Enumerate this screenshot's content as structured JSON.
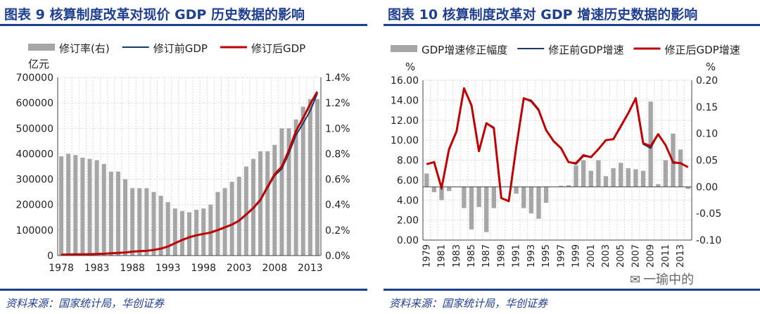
{
  "colors": {
    "title_blue": "#1f3f8f",
    "bar_gray": "#a6a6a6",
    "pre_line": "#1f3864",
    "post_line": "#c00000",
    "grid": "#d9d9d9"
  },
  "left": {
    "title": "图表 9  核算制度改革对现价 GDP 历史数据的影响",
    "source": "资料来源：国家统计局，华创证券"
  },
  "right": {
    "title": "图表 10  核算制度改革对 GDP 增速历史数据的影响",
    "source": "资料来源：国家统计局，华创证券",
    "watermark": "一瑜中的"
  },
  "chart_data": [
    {
      "type": "bar",
      "legend": [
        "修订率(右)",
        "修订前GDP",
        "修订后GDP"
      ],
      "y_left_unit": "亿元",
      "ylim_left": [
        0,
        700000
      ],
      "yticks_left": [
        "0",
        "100000",
        "200000",
        "300000",
        "400000",
        "500000",
        "600000",
        "700000"
      ],
      "ylim_right": [
        0,
        1.4
      ],
      "yticks_right": [
        "0.0%",
        "0.2%",
        "0.4%",
        "0.6%",
        "0.8%",
        "1.0%",
        "1.2%",
        "1.4%"
      ],
      "x": [
        1978,
        1979,
        1980,
        1981,
        1982,
        1983,
        1984,
        1985,
        1986,
        1987,
        1988,
        1989,
        1990,
        1991,
        1992,
        1993,
        1994,
        1995,
        1996,
        1997,
        1998,
        1999,
        2000,
        2001,
        2002,
        2003,
        2004,
        2005,
        2006,
        2007,
        2008,
        2009,
        2010,
        2011,
        2012,
        2013,
        2014
      ],
      "xticks": [
        "1978",
        "1983",
        "1988",
        "1993",
        "1998",
        "2003",
        "2008",
        "2013"
      ],
      "series": [
        {
          "name": "修订率(右)",
          "kind": "bar",
          "axis": "right",
          "values": [
            0.78,
            0.8,
            0.79,
            0.77,
            0.76,
            0.75,
            0.72,
            0.66,
            0.66,
            0.6,
            0.53,
            0.53,
            0.53,
            0.5,
            0.47,
            0.42,
            0.37,
            0.35,
            0.34,
            0.36,
            0.37,
            0.4,
            0.5,
            0.53,
            0.58,
            0.62,
            0.7,
            0.76,
            0.82,
            0.82,
            0.87,
            1.0,
            1.0,
            1.07,
            1.17,
            1.23,
            1.23
          ]
        },
        {
          "name": "修订前GDP",
          "kind": "line",
          "axis": "left",
          "values": [
            3650,
            4070,
            4550,
            4890,
            5320,
            5960,
            7210,
            9040,
            10280,
            12060,
            15040,
            16990,
            18670,
            21780,
            26920,
            35330,
            48200,
            60790,
            71180,
            78970,
            84400,
            89680,
            99210,
            109650,
            120330,
            135820,
            159880,
            184940,
            216310,
            265810,
            314050,
            340900,
            401510,
            473100,
            519470,
            568850,
            636460
          ]
        },
        {
          "name": "修订后GDP",
          "kind": "line",
          "axis": "left",
          "values": [
            3680,
            4100,
            4590,
            4940,
            5370,
            6020,
            7280,
            9100,
            10380,
            12170,
            15180,
            17180,
            18870,
            22010,
            27190,
            35670,
            48640,
            61340,
            71810,
            79710,
            85200,
            90560,
            100280,
            110860,
            121720,
            137420,
            161840,
            187320,
            219440,
            270230,
            319520,
            349080,
            413030,
            489300,
            540370,
            595240,
            643970
          ]
        }
      ]
    },
    {
      "type": "bar",
      "legend": [
        "GDP增速修正幅度",
        "修正前GDP增速",
        "修正后GDP增速"
      ],
      "y_left_unit": "%",
      "y_right_unit": "%",
      "ylim_left": [
        0,
        16
      ],
      "yticks_left": [
        "0.00",
        "2.00",
        "4.00",
        "6.00",
        "8.00",
        "10.00",
        "12.00",
        "14.00",
        "16.00"
      ],
      "ylim_right": [
        -0.1,
        0.2
      ],
      "yticks_right": [
        "-0.10",
        "-0.05",
        "0.00",
        "0.05",
        "0.10",
        "0.15",
        "0.20"
      ],
      "x": [
        1979,
        1980,
        1981,
        1982,
        1983,
        1984,
        1985,
        1986,
        1987,
        1988,
        1989,
        1990,
        1991,
        1992,
        1993,
        1994,
        1995,
        1996,
        1997,
        1998,
        1999,
        2000,
        2001,
        2002,
        2003,
        2004,
        2005,
        2006,
        2007,
        2008,
        2009,
        2010,
        2011,
        2012,
        2013,
        2014
      ],
      "xticks": [
        "1979",
        "1981",
        "1983",
        "1985",
        "1987",
        "1989",
        "1991",
        "1993",
        "1995",
        "1997",
        "1999",
        "2001",
        "2003",
        "2005",
        "2007",
        "2009",
        "2011",
        "2013"
      ],
      "series": [
        {
          "name": "GDP增速修正幅度",
          "kind": "bar",
          "axis": "right",
          "values": [
            0.025,
            -0.01,
            -0.025,
            -0.008,
            0.0,
            -0.04,
            -0.08,
            -0.038,
            -0.085,
            -0.04,
            0.0,
            0.0,
            -0.013,
            -0.04,
            -0.05,
            -0.06,
            -0.03,
            0.0,
            0.002,
            0.003,
            0.04,
            0.05,
            0.03,
            0.05,
            0.02,
            0.035,
            0.045,
            0.035,
            0.033,
            0.03,
            0.16,
            0.005,
            0.05,
            0.1,
            0.07,
            -0.004
          ]
        },
        {
          "name": "修正前GDP增速",
          "kind": "line",
          "axis": "left",
          "values": [
            7.6,
            7.8,
            5.1,
            9.0,
            10.8,
            15.2,
            13.4,
            8.9,
            11.7,
            11.3,
            4.2,
            3.9,
            9.3,
            14.2,
            14.0,
            13.1,
            11.0,
            9.9,
            9.2,
            7.8,
            7.6,
            8.4,
            8.3,
            9.1,
            10.0,
            10.1,
            11.3,
            12.7,
            14.2,
            9.6,
            9.2,
            10.6,
            9.5,
            7.7,
            7.7,
            7.3
          ]
        },
        {
          "name": "修正后GDP增速",
          "kind": "line",
          "axis": "left",
          "values": [
            7.6,
            7.8,
            5.2,
            9.1,
            10.9,
            15.2,
            13.5,
            8.9,
            11.7,
            11.2,
            4.2,
            3.9,
            9.3,
            14.2,
            13.9,
            13.0,
            11.0,
            9.9,
            9.2,
            7.8,
            7.7,
            8.5,
            8.3,
            9.1,
            10.0,
            10.1,
            11.4,
            12.7,
            14.2,
            9.7,
            9.4,
            10.6,
            9.5,
            7.8,
            7.7,
            7.3
          ]
        }
      ]
    }
  ]
}
